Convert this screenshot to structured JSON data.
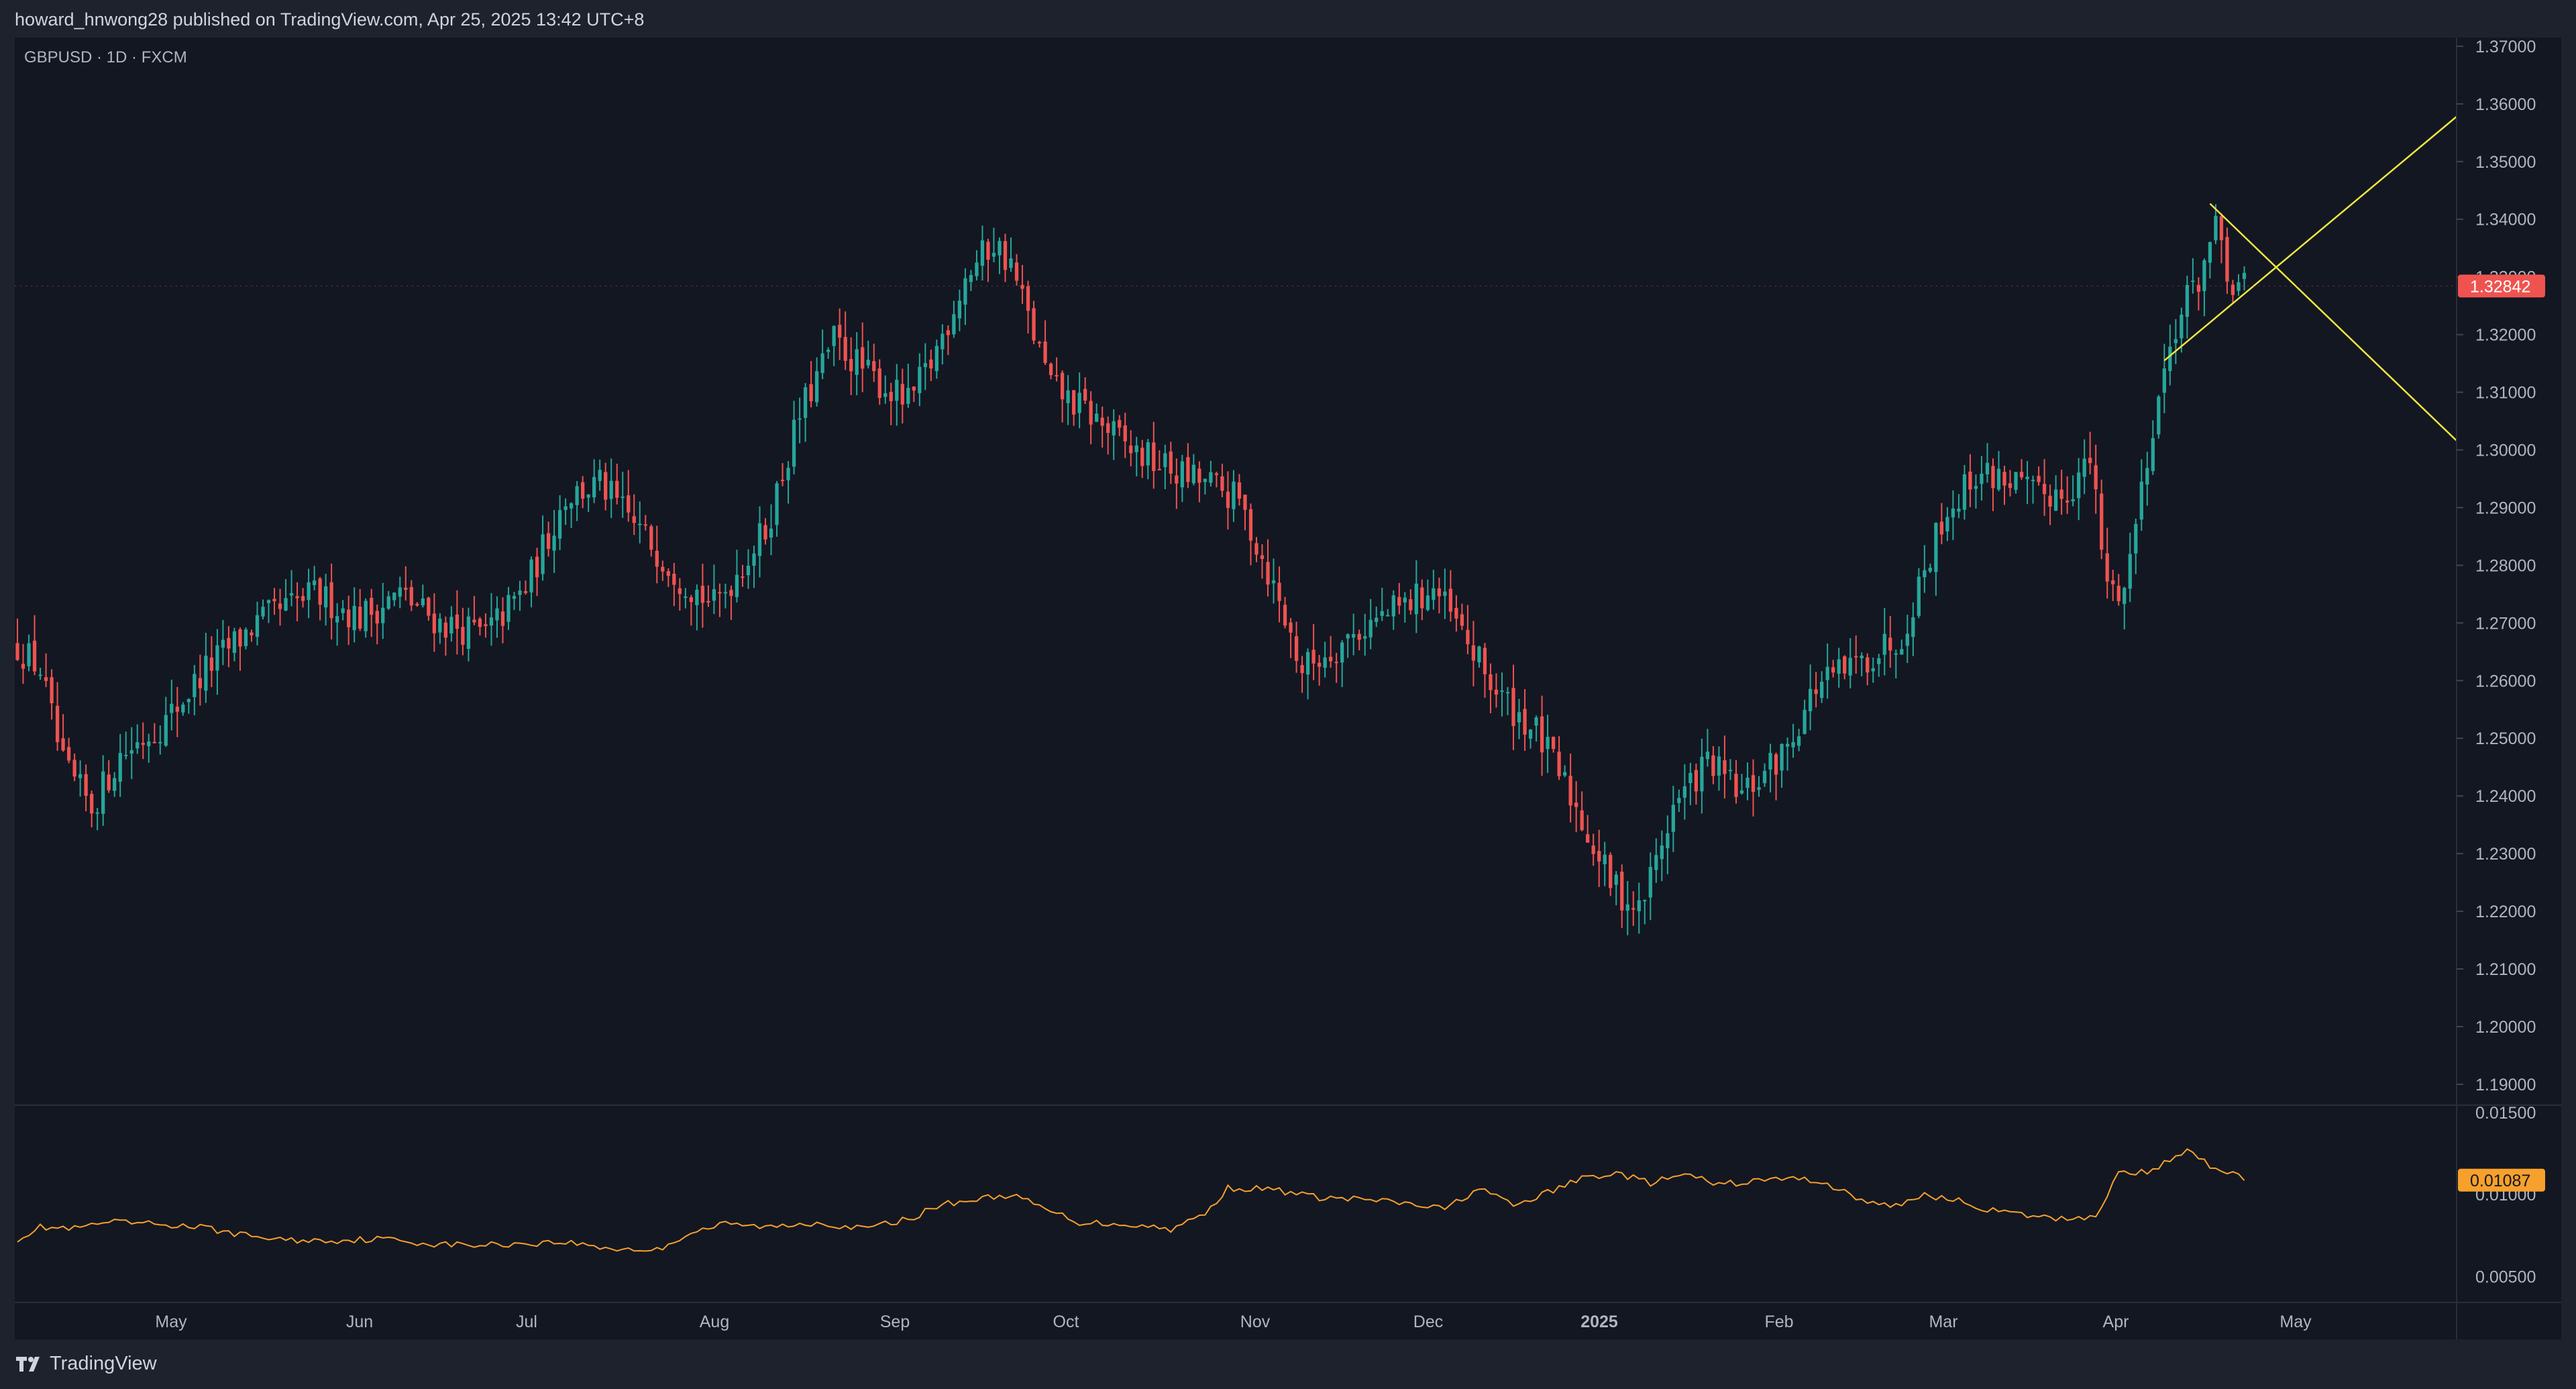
{
  "header": {
    "publisher_text": "howard_hnwong28 published on TradingView.com, Apr 25, 2025 13:42 UTC+8"
  },
  "footer": {
    "brand": "TradingView"
  },
  "colors": {
    "up": "#26a69a",
    "down": "#ef5350",
    "background": "#131722",
    "grid": "#2a2e39",
    "trendline": "#f5e642",
    "indicator": "#f7a02c"
  },
  "chart_data": {
    "type": "candlestick",
    "title": "GBPUSD · 1D · FXCM",
    "last_price_label": "1.32842",
    "y_ticks": [
      "1.37000",
      "1.36000",
      "1.35000",
      "1.34000",
      "1.33000",
      "1.32000",
      "1.31000",
      "1.30000",
      "1.29000",
      "1.28000",
      "1.27000",
      "1.26000",
      "1.25000",
      "1.24000",
      "1.23000",
      "1.22000",
      "1.21000",
      "1.20000",
      "1.19000"
    ],
    "ylim": [
      1.1865,
      1.3715
    ],
    "x_ticks": [
      "May",
      "Jun",
      "Jul",
      "Aug",
      "Sep",
      "Oct",
      "Nov",
      "Dec",
      "2025",
      "Feb",
      "Mar",
      "Apr",
      "May"
    ],
    "close_path": [
      {
        "i": 0,
        "v": 1.266
      },
      {
        "i": 4,
        "v": 1.262
      },
      {
        "i": 8,
        "v": 1.245
      },
      {
        "i": 13,
        "v": 1.238
      },
      {
        "i": 18,
        "v": 1.247
      },
      {
        "i": 26,
        "v": 1.253
      },
      {
        "i": 33,
        "v": 1.262
      },
      {
        "i": 42,
        "v": 1.27
      },
      {
        "i": 52,
        "v": 1.275
      },
      {
        "i": 60,
        "v": 1.271
      },
      {
        "i": 67,
        "v": 1.275
      },
      {
        "i": 74,
        "v": 1.27
      },
      {
        "i": 82,
        "v": 1.268
      },
      {
        "i": 89,
        "v": 1.276
      },
      {
        "i": 96,
        "v": 1.292
      },
      {
        "i": 102,
        "v": 1.294
      },
      {
        "i": 109,
        "v": 1.286
      },
      {
        "i": 116,
        "v": 1.278
      },
      {
        "i": 122,
        "v": 1.273
      },
      {
        "i": 131,
        "v": 1.286
      },
      {
        "i": 137,
        "v": 1.306
      },
      {
        "i": 143,
        "v": 1.319
      },
      {
        "i": 149,
        "v": 1.313
      },
      {
        "i": 156,
        "v": 1.308
      },
      {
        "i": 160,
        "v": 1.315
      },
      {
        "i": 166,
        "v": 1.33
      },
      {
        "i": 171,
        "v": 1.336
      },
      {
        "i": 174,
        "v": 1.332
      },
      {
        "i": 181,
        "v": 1.311
      },
      {
        "i": 188,
        "v": 1.306
      },
      {
        "i": 195,
        "v": 1.3
      },
      {
        "i": 203,
        "v": 1.296
      },
      {
        "i": 209,
        "v": 1.294
      },
      {
        "i": 214,
        "v": 1.291
      },
      {
        "i": 219,
        "v": 1.279
      },
      {
        "i": 225,
        "v": 1.262
      },
      {
        "i": 231,
        "v": 1.266
      },
      {
        "i": 237,
        "v": 1.27
      },
      {
        "i": 243,
        "v": 1.273
      },
      {
        "i": 248,
        "v": 1.276
      },
      {
        "i": 253,
        "v": 1.268
      },
      {
        "i": 259,
        "v": 1.258
      },
      {
        "i": 266,
        "v": 1.251
      },
      {
        "i": 272,
        "v": 1.24
      },
      {
        "i": 279,
        "v": 1.225
      },
      {
        "i": 284,
        "v": 1.22
      },
      {
        "i": 290,
        "v": 1.238
      },
      {
        "i": 296,
        "v": 1.246
      },
      {
        "i": 302,
        "v": 1.24
      },
      {
        "i": 309,
        "v": 1.247
      },
      {
        "i": 315,
        "v": 1.259
      },
      {
        "i": 321,
        "v": 1.262
      },
      {
        "i": 330,
        "v": 1.268
      },
      {
        "i": 337,
        "v": 1.288
      },
      {
        "i": 343,
        "v": 1.296
      },
      {
        "i": 349,
        "v": 1.295
      },
      {
        "i": 353,
        "v": 1.292
      },
      {
        "i": 359,
        "v": 1.293
      },
      {
        "i": 363,
        "v": 1.298
      },
      {
        "i": 366,
        "v": 1.276
      },
      {
        "i": 369,
        "v": 1.276
      },
      {
        "i": 374,
        "v": 1.305
      },
      {
        "i": 378,
        "v": 1.322
      },
      {
        "i": 382,
        "v": 1.33
      },
      {
        "i": 385,
        "v": 1.338
      },
      {
        "i": 387,
        "v": 1.329
      },
      {
        "i": 390,
        "v": 1.328
      }
    ],
    "indicator": {
      "y_ticks": [
        "0.01500",
        "0.01000",
        "0.00500"
      ],
      "ylim": [
        0.0035,
        0.0154
      ],
      "last_value_label": "0.01087",
      "path": [
        {
          "i": 0,
          "v": 0.0073
        },
        {
          "i": 4,
          "v": 0.008
        },
        {
          "i": 10,
          "v": 0.0079
        },
        {
          "i": 16,
          "v": 0.0083
        },
        {
          "i": 24,
          "v": 0.0082
        },
        {
          "i": 32,
          "v": 0.008
        },
        {
          "i": 40,
          "v": 0.0075
        },
        {
          "i": 48,
          "v": 0.0072
        },
        {
          "i": 56,
          "v": 0.0072
        },
        {
          "i": 64,
          "v": 0.0073
        },
        {
          "i": 72,
          "v": 0.007
        },
        {
          "i": 80,
          "v": 0.0069
        },
        {
          "i": 88,
          "v": 0.007
        },
        {
          "i": 96,
          "v": 0.0071
        },
        {
          "i": 104,
          "v": 0.0067
        },
        {
          "i": 112,
          "v": 0.0066
        },
        {
          "i": 118,
          "v": 0.0077
        },
        {
          "i": 124,
          "v": 0.0082
        },
        {
          "i": 132,
          "v": 0.008
        },
        {
          "i": 140,
          "v": 0.0083
        },
        {
          "i": 148,
          "v": 0.0079
        },
        {
          "i": 156,
          "v": 0.0085
        },
        {
          "i": 162,
          "v": 0.0094
        },
        {
          "i": 168,
          "v": 0.0097
        },
        {
          "i": 174,
          "v": 0.01
        },
        {
          "i": 180,
          "v": 0.0091
        },
        {
          "i": 186,
          "v": 0.0083
        },
        {
          "i": 194,
          "v": 0.0082
        },
        {
          "i": 202,
          "v": 0.0079
        },
        {
          "i": 208,
          "v": 0.0088
        },
        {
          "i": 212,
          "v": 0.0104
        },
        {
          "i": 220,
          "v": 0.0103
        },
        {
          "i": 228,
          "v": 0.0098
        },
        {
          "i": 236,
          "v": 0.0097
        },
        {
          "i": 244,
          "v": 0.0094
        },
        {
          "i": 250,
          "v": 0.0091
        },
        {
          "i": 256,
          "v": 0.0104
        },
        {
          "i": 262,
          "v": 0.0093
        },
        {
          "i": 268,
          "v": 0.0101
        },
        {
          "i": 274,
          "v": 0.011
        },
        {
          "i": 280,
          "v": 0.0113
        },
        {
          "i": 286,
          "v": 0.0107
        },
        {
          "i": 292,
          "v": 0.0112
        },
        {
          "i": 298,
          "v": 0.0106
        },
        {
          "i": 304,
          "v": 0.0108
        },
        {
          "i": 310,
          "v": 0.011
        },
        {
          "i": 316,
          "v": 0.0108
        },
        {
          "i": 322,
          "v": 0.0098
        },
        {
          "i": 328,
          "v": 0.0092
        },
        {
          "i": 334,
          "v": 0.01
        },
        {
          "i": 340,
          "v": 0.0096
        },
        {
          "i": 346,
          "v": 0.009
        },
        {
          "i": 352,
          "v": 0.0087
        },
        {
          "i": 358,
          "v": 0.0085
        },
        {
          "i": 364,
          "v": 0.0087
        },
        {
          "i": 368,
          "v": 0.0113
        },
        {
          "i": 374,
          "v": 0.0114
        },
        {
          "i": 380,
          "v": 0.0128
        },
        {
          "i": 384,
          "v": 0.0118
        },
        {
          "i": 388,
          "v": 0.0113
        },
        {
          "i": 390,
          "v": 0.0109
        }
      ]
    }
  }
}
